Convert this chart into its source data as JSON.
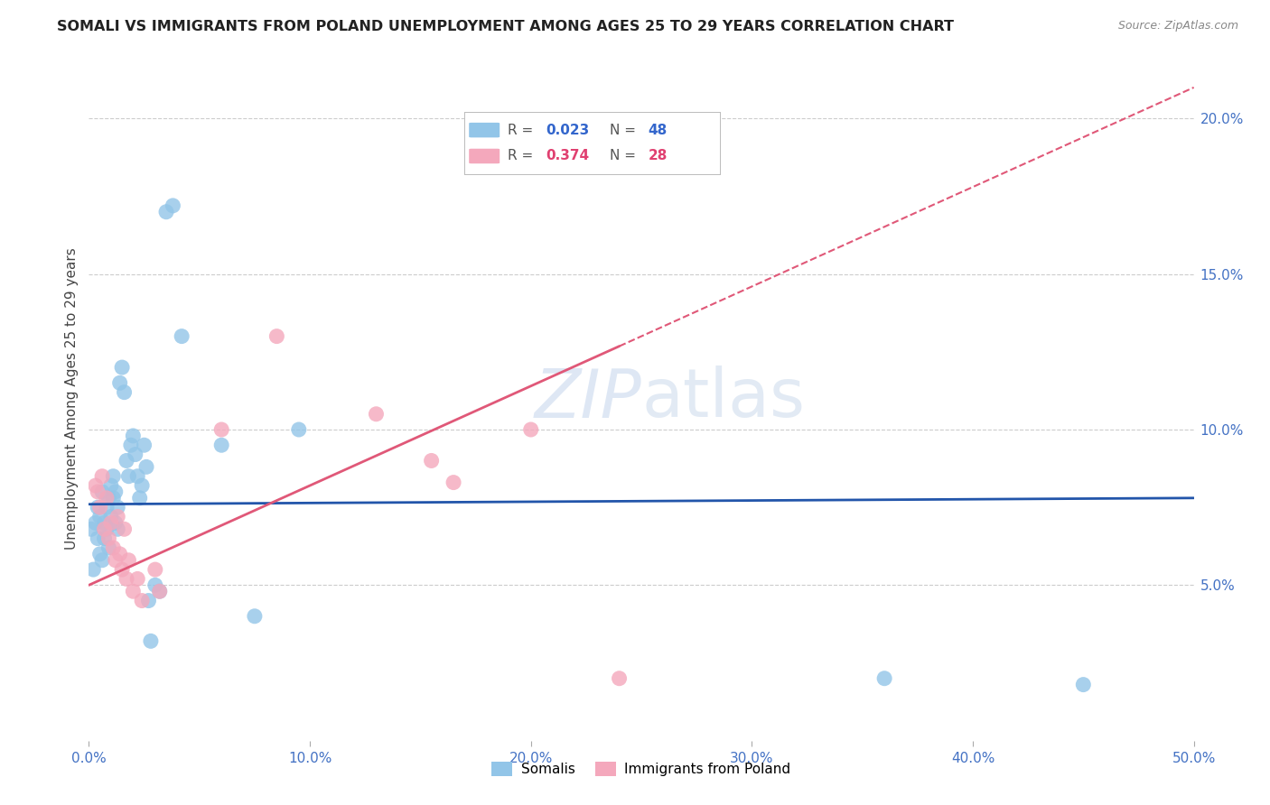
{
  "title": "SOMALI VS IMMIGRANTS FROM POLAND UNEMPLOYMENT AMONG AGES 25 TO 29 YEARS CORRELATION CHART",
  "source": "Source: ZipAtlas.com",
  "ylabel": "Unemployment Among Ages 25 to 29 years",
  "xlim": [
    0.0,
    0.5
  ],
  "ylim": [
    0.0,
    0.22
  ],
  "yticks": [
    0.05,
    0.1,
    0.15,
    0.2
  ],
  "ytick_labels": [
    "5.0%",
    "10.0%",
    "15.0%",
    "20.0%"
  ],
  "xticks": [
    0.0,
    0.1,
    0.2,
    0.3,
    0.4,
    0.5
  ],
  "xtick_labels": [
    "0.0%",
    "10.0%",
    "20.0%",
    "30.0%",
    "40.0%",
    "50.0%"
  ],
  "somali_color": "#92C5E8",
  "poland_color": "#F4A8BC",
  "somali_line_color": "#2255AA",
  "poland_line_color": "#E05878",
  "legend_r_somali": "0.023",
  "legend_n_somali": "48",
  "legend_r_poland": "0.374",
  "legend_n_poland": "28",
  "background_color": "#ffffff",
  "grid_color": "#cccccc",
  "watermark_zip": "ZIP",
  "watermark_atlas": "atlas",
  "somali_x": [
    0.001,
    0.002,
    0.003,
    0.004,
    0.004,
    0.005,
    0.005,
    0.006,
    0.006,
    0.007,
    0.007,
    0.008,
    0.008,
    0.009,
    0.009,
    0.01,
    0.01,
    0.011,
    0.011,
    0.012,
    0.012,
    0.013,
    0.013,
    0.014,
    0.015,
    0.016,
    0.017,
    0.018,
    0.019,
    0.02,
    0.021,
    0.022,
    0.023,
    0.024,
    0.025,
    0.026,
    0.027,
    0.028,
    0.03,
    0.032,
    0.035,
    0.038,
    0.042,
    0.06,
    0.075,
    0.095,
    0.36,
    0.45
  ],
  "somali_y": [
    0.068,
    0.055,
    0.07,
    0.065,
    0.075,
    0.06,
    0.072,
    0.058,
    0.08,
    0.065,
    0.07,
    0.075,
    0.068,
    0.078,
    0.062,
    0.072,
    0.082,
    0.078,
    0.085,
    0.07,
    0.08,
    0.075,
    0.068,
    0.115,
    0.12,
    0.112,
    0.09,
    0.085,
    0.095,
    0.098,
    0.092,
    0.085,
    0.078,
    0.082,
    0.095,
    0.088,
    0.045,
    0.032,
    0.05,
    0.048,
    0.17,
    0.172,
    0.13,
    0.095,
    0.04,
    0.1,
    0.02,
    0.018
  ],
  "poland_x": [
    0.003,
    0.004,
    0.005,
    0.006,
    0.007,
    0.008,
    0.009,
    0.01,
    0.011,
    0.012,
    0.013,
    0.014,
    0.015,
    0.016,
    0.017,
    0.018,
    0.02,
    0.022,
    0.024,
    0.03,
    0.032,
    0.06,
    0.085,
    0.13,
    0.155,
    0.165,
    0.2,
    0.24
  ],
  "poland_y": [
    0.082,
    0.08,
    0.075,
    0.085,
    0.068,
    0.078,
    0.065,
    0.07,
    0.062,
    0.058,
    0.072,
    0.06,
    0.055,
    0.068,
    0.052,
    0.058,
    0.048,
    0.052,
    0.045,
    0.055,
    0.048,
    0.1,
    0.13,
    0.105,
    0.09,
    0.083,
    0.1,
    0.02
  ]
}
